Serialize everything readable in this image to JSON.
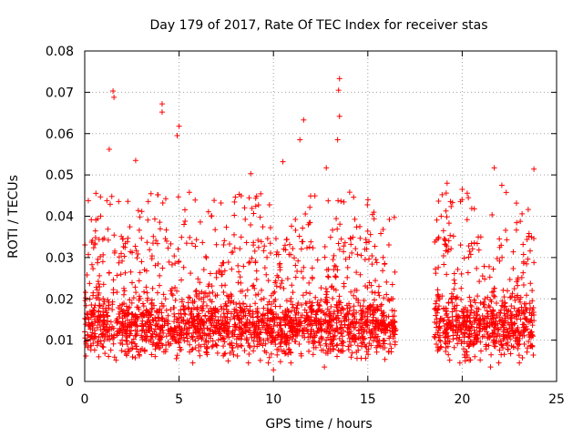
{
  "chart_data": {
    "type": "scatter",
    "title": "Day 179 of 2017, Rate Of TEC Index for receiver stas",
    "xlabel": "GPS time / hours",
    "ylabel": "ROTI / TECUs",
    "xlim": [
      0,
      25
    ],
    "ylim": [
      0,
      0.08
    ],
    "xticks": [
      "0",
      "5",
      "10",
      "15",
      "20",
      "25"
    ],
    "yticks": [
      "0",
      "0.01",
      "0.02",
      "0.03",
      "0.04",
      "0.05",
      "0.06",
      "0.07",
      "0.08"
    ],
    "grid": true,
    "marker": "+",
    "color": "#ff0000",
    "data_gaps_hours": [
      [
        16.5,
        18.5
      ]
    ],
    "notable_points": [
      {
        "x": 1.5,
        "y": 0.0703
      },
      {
        "x": 1.55,
        "y": 0.0688
      },
      {
        "x": 4.1,
        "y": 0.0672
      },
      {
        "x": 4.1,
        "y": 0.0652
      },
      {
        "x": 5.0,
        "y": 0.0618
      },
      {
        "x": 4.9,
        "y": 0.0595
      },
      {
        "x": 13.5,
        "y": 0.0733
      },
      {
        "x": 13.45,
        "y": 0.0705
      },
      {
        "x": 13.5,
        "y": 0.0642
      },
      {
        "x": 13.4,
        "y": 0.0585
      },
      {
        "x": 11.6,
        "y": 0.0633
      },
      {
        "x": 11.4,
        "y": 0.0585
      },
      {
        "x": 1.3,
        "y": 0.0562
      },
      {
        "x": 2.7,
        "y": 0.0535
      },
      {
        "x": 10.5,
        "y": 0.0532
      },
      {
        "x": 12.8,
        "y": 0.0517
      },
      {
        "x": 8.8,
        "y": 0.0503
      },
      {
        "x": 21.7,
        "y": 0.0517
      },
      {
        "x": 23.8,
        "y": 0.0514
      },
      {
        "x": 19.2,
        "y": 0.048
      },
      {
        "x": 22.1,
        "y": 0.0475
      },
      {
        "x": 20.0,
        "y": 0.0465
      },
      {
        "x": 18.6,
        "y": 0.0262
      },
      {
        "x": 10.0,
        "y": 0.0028
      },
      {
        "x": 12.7,
        "y": 0.0035
      },
      {
        "x": 21.5,
        "y": 0.0035
      }
    ]
  }
}
